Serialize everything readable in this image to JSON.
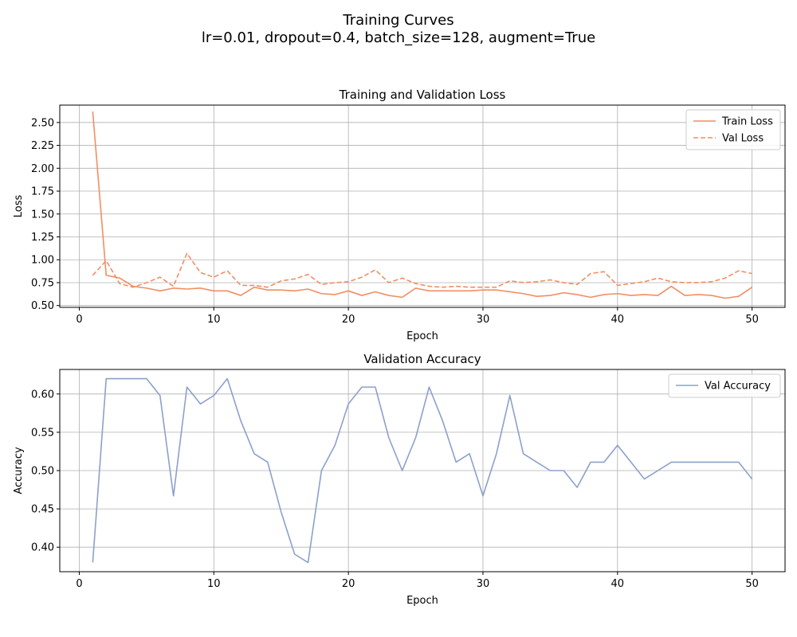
{
  "figure": {
    "suptitle_line1": "Training Curves",
    "suptitle_line2": "lr=0.01, dropout=0.4, batch_size=128, augment=True"
  },
  "colors": {
    "train": "#f28e63",
    "val_loss": "#f28e63",
    "val_acc": "#8da0cb",
    "grid": "#b0b0b0",
    "axis": "#000000"
  },
  "chart_data": [
    {
      "type": "line",
      "title": "Training and Validation Loss",
      "xlabel": "Epoch",
      "ylabel": "Loss",
      "xlim": [
        -1.45,
        52.45
      ],
      "ylim": [
        0.48,
        2.69
      ],
      "xticks": [
        0,
        10,
        20,
        30,
        40,
        50
      ],
      "yticks": [
        0.5,
        0.75,
        1.0,
        1.25,
        1.5,
        1.75,
        2.0,
        2.25,
        2.5
      ],
      "ytick_labels": [
        "0.50",
        "0.75",
        "1.00",
        "1.25",
        "1.50",
        "1.75",
        "2.00",
        "2.25",
        "2.50"
      ],
      "grid": true,
      "legend": "top-right",
      "x": [
        1,
        2,
        3,
        4,
        5,
        6,
        7,
        8,
        9,
        10,
        11,
        12,
        13,
        14,
        15,
        16,
        17,
        18,
        19,
        20,
        21,
        22,
        23,
        24,
        25,
        26,
        27,
        28,
        29,
        30,
        31,
        32,
        33,
        34,
        35,
        36,
        37,
        38,
        39,
        40,
        41,
        42,
        43,
        44,
        45,
        46,
        47,
        48,
        49,
        50
      ],
      "series": [
        {
          "name": "Train Loss",
          "style": "solid",
          "values": [
            2.62,
            0.83,
            0.8,
            0.71,
            0.69,
            0.66,
            0.69,
            0.68,
            0.69,
            0.66,
            0.66,
            0.61,
            0.7,
            0.67,
            0.67,
            0.66,
            0.68,
            0.63,
            0.62,
            0.66,
            0.61,
            0.65,
            0.61,
            0.59,
            0.69,
            0.66,
            0.66,
            0.66,
            0.66,
            0.67,
            0.67,
            0.65,
            0.63,
            0.6,
            0.61,
            0.64,
            0.62,
            0.59,
            0.62,
            0.63,
            0.61,
            0.62,
            0.61,
            0.71,
            0.61,
            0.62,
            0.61,
            0.58,
            0.6,
            0.7
          ]
        },
        {
          "name": "Val Loss",
          "style": "dashed",
          "values": [
            0.83,
            0.99,
            0.74,
            0.7,
            0.75,
            0.81,
            0.71,
            1.07,
            0.86,
            0.81,
            0.88,
            0.72,
            0.72,
            0.7,
            0.77,
            0.79,
            0.84,
            0.73,
            0.75,
            0.76,
            0.81,
            0.89,
            0.75,
            0.8,
            0.74,
            0.71,
            0.7,
            0.71,
            0.7,
            0.7,
            0.7,
            0.77,
            0.75,
            0.76,
            0.78,
            0.75,
            0.73,
            0.85,
            0.87,
            0.72,
            0.74,
            0.76,
            0.8,
            0.76,
            0.75,
            0.75,
            0.76,
            0.8,
            0.88,
            0.85
          ]
        }
      ]
    },
    {
      "type": "line",
      "title": "Validation Accuracy",
      "xlabel": "Epoch",
      "ylabel": "Accuracy",
      "xlim": [
        -1.45,
        52.45
      ],
      "ylim": [
        0.368,
        0.632
      ],
      "xticks": [
        0,
        10,
        20,
        30,
        40,
        50
      ],
      "yticks": [
        0.4,
        0.45,
        0.5,
        0.55,
        0.6
      ],
      "ytick_labels": [
        "0.40",
        "0.45",
        "0.50",
        "0.55",
        "0.60"
      ],
      "grid": true,
      "legend": "top-right",
      "x": [
        1,
        2,
        3,
        4,
        5,
        6,
        7,
        8,
        9,
        10,
        11,
        12,
        13,
        14,
        15,
        16,
        17,
        18,
        19,
        20,
        21,
        22,
        23,
        24,
        25,
        26,
        27,
        28,
        29,
        30,
        31,
        32,
        33,
        34,
        35,
        36,
        37,
        38,
        39,
        40,
        41,
        42,
        43,
        44,
        45,
        46,
        47,
        48,
        49,
        50
      ],
      "series": [
        {
          "name": "Val Accuracy",
          "style": "solid",
          "values": [
            0.38,
            0.62,
            0.62,
            0.62,
            0.62,
            0.598,
            0.467,
            0.609,
            0.587,
            0.598,
            0.62,
            0.565,
            0.522,
            0.511,
            0.446,
            0.391,
            0.38,
            0.5,
            0.533,
            0.587,
            0.609,
            0.609,
            0.543,
            0.5,
            0.543,
            0.609,
            0.565,
            0.511,
            0.522,
            0.467,
            0.522,
            0.598,
            0.522,
            0.511,
            0.5,
            0.5,
            0.478,
            0.511,
            0.511,
            0.533,
            0.511,
            0.489,
            0.5,
            0.511,
            0.511,
            0.511,
            0.511,
            0.511,
            0.511,
            0.489
          ]
        }
      ]
    }
  ]
}
